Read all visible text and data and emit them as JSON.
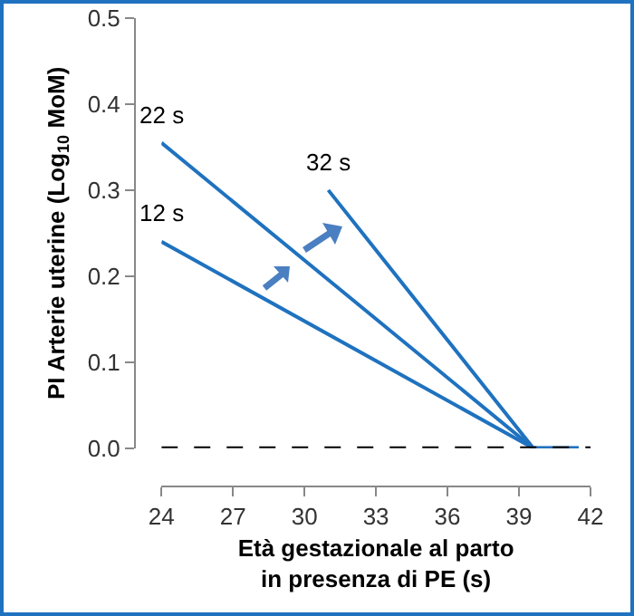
{
  "chart_data": {
    "type": "line",
    "xlabel": "Età gestazionale al parto\nin presenza di PE (s)",
    "ylabel": "PI Arterie uterine (Log$_{10}$ MoM)",
    "series": [
      {
        "name": "22 s",
        "color": "#1f72bf",
        "x": [
          24,
          39.6,
          41.5
        ],
        "values": [
          0.355,
          0,
          0
        ]
      },
      {
        "name": "12 s",
        "color": "#1f72bf",
        "x": [
          24,
          39.6,
          41.5
        ],
        "values": [
          0.24,
          0,
          0
        ]
      },
      {
        "name": "32 s",
        "color": "#1f72bf",
        "x": [
          31,
          39.6,
          41.5
        ],
        "values": [
          0.3,
          0,
          0
        ]
      }
    ],
    "xlim": [
      24,
      42
    ],
    "xticks": [
      24,
      27,
      30,
      33,
      36,
      39,
      42
    ],
    "ylim": [
      0,
      0.5
    ],
    "yticks": [
      {
        "value": 0,
        "label": "0.0"
      },
      0.1,
      0.2,
      0.3,
      0.4,
      0.5
    ],
    "ref_lines": [
      {
        "axis": "y",
        "value": 0,
        "color": "#000000",
        "line_style": "dashed"
      }
    ],
    "grid": false,
    "legend": false,
    "marker": "none",
    "line_style": "solid"
  }
}
